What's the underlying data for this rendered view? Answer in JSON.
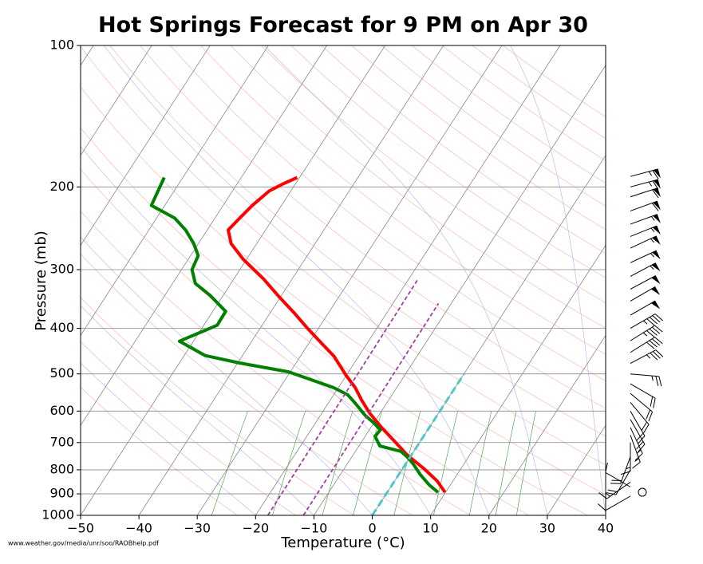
{
  "chart_data": {
    "type": "skewt",
    "title": "Hot Springs Forecast for 9 PM on Apr 30",
    "xlabel": "Temperature (°C)",
    "ylabel": "Pressure (mb)",
    "source": "www.weather.gov/media/unr/soo/RAOBhelp.pdf",
    "xlim": [
      -50,
      40
    ],
    "ylim": [
      1000,
      100
    ],
    "yscale": "log",
    "grid": true,
    "xticks": [
      {
        "value": -50,
        "label": "−50"
      },
      {
        "value": -40,
        "label": "−40"
      },
      {
        "value": -30,
        "label": "−30"
      },
      {
        "value": -20,
        "label": "−20"
      },
      {
        "value": -10,
        "label": "−10"
      },
      0,
      10,
      20,
      30,
      40
    ],
    "yticks": [
      1000,
      900,
      800,
      700,
      600,
      500,
      400,
      300,
      200,
      100
    ],
    "series": [
      {
        "color": "#ff0000",
        "style": "solid",
        "pressure": [
          893,
          845,
          797,
          743,
          692,
          650,
          606,
          569,
          535,
          503,
          459,
          425,
          399,
          370,
          343,
          314,
          285,
          264,
          247,
          234,
          219,
          204,
          197,
          191
        ],
        "values": [
          9.9,
          7.3,
          3.8,
          -0.8,
          -4.7,
          -8.2,
          -11.8,
          -14.6,
          -17.1,
          -20.1,
          -24.2,
          -28.5,
          -32,
          -36,
          -40.2,
          -44.9,
          -50.6,
          -54.4,
          -56.4,
          -55.8,
          -55,
          -53.7,
          -52.1,
          -50.4
        ]
      },
      {
        "color": "#008000",
        "style": "solid",
        "pressure": [
          893,
          862,
          819,
          779,
          755,
          731,
          712,
          679,
          658,
          635,
          613,
          576,
          554,
          535,
          495,
          474,
          457,
          426,
          394,
          368,
          340,
          321,
          300,
          280,
          264,
          247,
          233,
          219,
          191
        ],
        "values": [
          8.7,
          6.4,
          3.7,
          1.4,
          -0.2,
          -2.2,
          -6.4,
          -8.3,
          -8.1,
          -10.1,
          -12.3,
          -15.5,
          -17.6,
          -20.8,
          -30.3,
          -39.7,
          -46.4,
          -52.4,
          -47.7,
          -47.8,
          -52.3,
          -56.1,
          -58.2,
          -58.7,
          -60.8,
          -63.7,
          -66.9,
          -72.3,
          -73.2
        ]
      },
      {
        "color": "#a040a0",
        "style": "dashed",
        "pressure": [
          1000,
          314
        ],
        "values": [
          -17.9,
          -18.4
        ]
      },
      {
        "color": "#a040a0",
        "style": "dashed",
        "pressure": [
          1000,
          354
        ],
        "values": [
          -11.8,
          -12.2
        ]
      },
      {
        "color": "#50c8c8",
        "style": "dashed",
        "pressure": [
          1000,
          500
        ],
        "values": [
          0,
          0
        ]
      }
    ],
    "wind": {
      "pressure": [
        910,
        893,
        870,
        850,
        800,
        750,
        700,
        675,
        650,
        625,
        600,
        575,
        550,
        525,
        500,
        475,
        450,
        425,
        400,
        375,
        350,
        330,
        310,
        290,
        270,
        255,
        240,
        225,
        210,
        200,
        190
      ],
      "speed": [
        10,
        0,
        10,
        15,
        20,
        20,
        15,
        15,
        15,
        20,
        20,
        20,
        20,
        20,
        25,
        35,
        40,
        45,
        45,
        50,
        50,
        50,
        55,
        55,
        55,
        55,
        55,
        60,
        60,
        65,
        65
      ],
      "direction": [
        240,
        0,
        300,
        235,
        210,
        200,
        180,
        160,
        155,
        150,
        150,
        140,
        130,
        120,
        95,
        62,
        58,
        58,
        60,
        60,
        60,
        62,
        62,
        65,
        65,
        68,
        70,
        70,
        72,
        75,
        75
      ]
    }
  }
}
